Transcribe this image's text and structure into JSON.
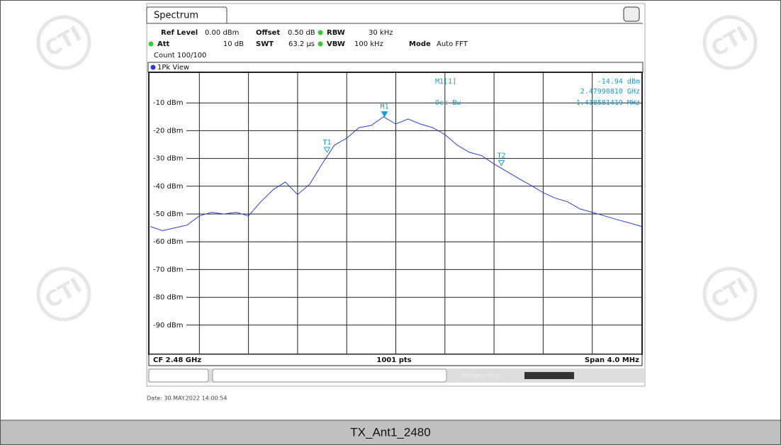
{
  "tab": "Spectrum",
  "settings": {
    "ref_level_label": "Ref Level",
    "ref_level": "0.00 dBm",
    "offset_label": "Offset",
    "offset": "0.50 dB",
    "rbw_label": "RBW",
    "rbw": "30 kHz",
    "att_label": "Att",
    "att": "10 dB",
    "swt_label": "SWT",
    "swt": "63.2 µs",
    "vbw_label": "VBW",
    "vbw": "100 kHz",
    "mode_label": "Mode",
    "mode": "Auto FFT",
    "count": "Count 100/100"
  },
  "view": "1Pk View",
  "marker_table": {
    "name": "M1[1]",
    "level": "-14.94 dBm",
    "frequency": "2.47990810 GHz",
    "occ_label": "Occ Bw",
    "occ_value": "1.418581419 MHz"
  },
  "chart_data": {
    "type": "line",
    "x": [
      2.478,
      2.4781,
      2.4782,
      2.4783,
      2.4784,
      2.4785,
      2.4786,
      2.4787,
      2.4788,
      2.4789,
      2.479,
      2.4791,
      2.4792,
      2.4793,
      2.4794,
      2.4795,
      2.4796,
      2.4797,
      2.4798,
      2.4799,
      2.48,
      2.4801,
      2.4802,
      2.4803,
      2.4804,
      2.4805,
      2.4806,
      2.4807,
      2.4808,
      2.4809,
      2.481,
      2.4811,
      2.4812,
      2.4813,
      2.4814,
      2.4815,
      2.4816,
      2.4817,
      2.4818,
      2.4819,
      2.482
    ],
    "series": [
      {
        "name": "1Pk",
        "color": "#2b3fd6",
        "values": [
          -54.5,
          -56,
          -55,
          -54,
          -50.7,
          -49.4,
          -50,
          -49.4,
          -50.7,
          -45.6,
          -41.3,
          -38.5,
          -43,
          -39.2,
          -32,
          -25.2,
          -22.7,
          -18.9,
          -18.1,
          -15,
          -17.6,
          -15.8,
          -17.6,
          -18.9,
          -21.4,
          -25.2,
          -27.8,
          -29,
          -32,
          -34.6,
          -37.2,
          -39.7,
          -42.3,
          -44.3,
          -45.6,
          -48.2,
          -49.4,
          -50.7,
          -52,
          -53.2,
          -54.5
        ]
      }
    ],
    "markers": [
      {
        "name": "M1",
        "x": 2.4799081,
        "y": -14.94
      },
      {
        "name": "T1",
        "x": 2.47944,
        "y": -27.8
      },
      {
        "name": "T2",
        "x": 2.48086,
        "y": -32.5
      }
    ],
    "xlim": [
      2.478,
      2.482
    ],
    "xticks": [
      2.4784,
      2.4788,
      2.4792,
      2.4796,
      2.48,
      2.4804,
      2.4808,
      2.4812,
      2.4816
    ],
    "ylim": [
      -100,
      0
    ],
    "yticks": [
      {
        "value": -10,
        "label": "-10 dBm"
      },
      {
        "value": -20,
        "label": "-20 dBm"
      },
      {
        "value": -30,
        "label": "-30 dBm"
      },
      {
        "value": -40,
        "label": "-40 dBm"
      },
      {
        "value": -50,
        "label": "-50 dBm"
      },
      {
        "value": -60,
        "label": "-60 dBm"
      },
      {
        "value": -70,
        "label": "-70 dBm"
      },
      {
        "value": -80,
        "label": "-80 dBm"
      },
      {
        "value": -90,
        "label": "-90 dBm"
      }
    ],
    "grid": true,
    "center": "CF 2.48 GHz",
    "points": "1001 pts",
    "span": "Span 4.0 MHz"
  },
  "status": "Measuring...",
  "date": "Date: 30.MAY.2022 14:00:54",
  "watermark": "CTI",
  "caption": "TX_Ant1_2480"
}
